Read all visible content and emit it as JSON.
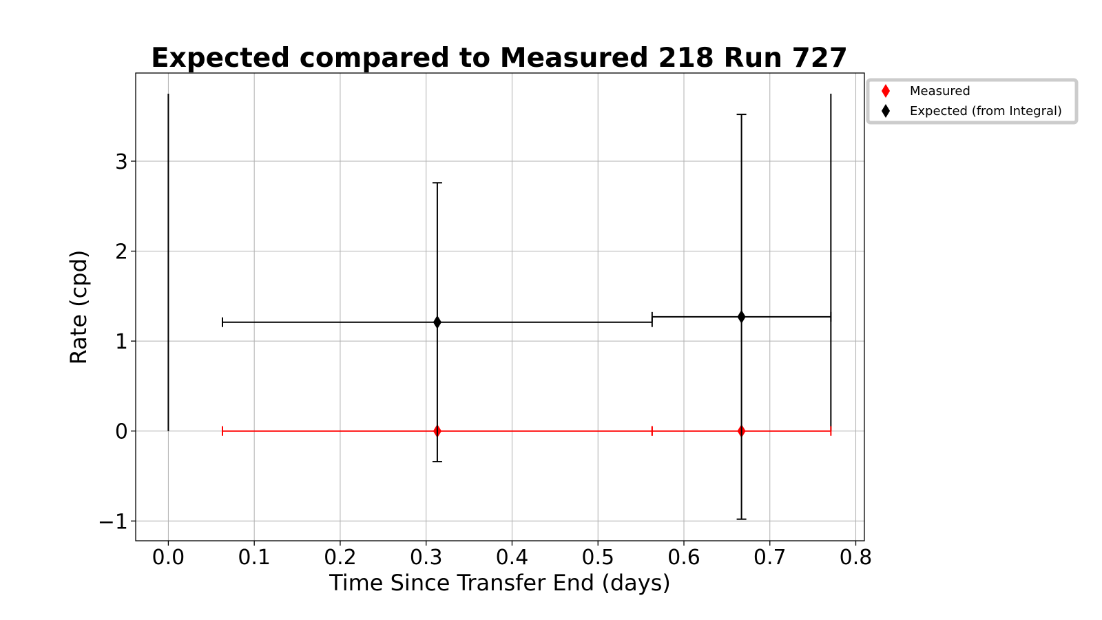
{
  "chart_data": {
    "type": "scatter",
    "title": "Expected compared to Measured 218 Run 727",
    "xlabel": "Time Since Transfer End (days)",
    "ylabel": "Rate (cpd)",
    "xlim": [
      -0.038,
      0.81
    ],
    "ylim": [
      -1.22,
      3.98
    ],
    "xticks": [
      0.0,
      0.1,
      0.2,
      0.3,
      0.4,
      0.5,
      0.6,
      0.7,
      0.8
    ],
    "xtick_labels": [
      "0.0",
      "0.1",
      "0.2",
      "0.3",
      "0.4",
      "0.5",
      "0.6",
      "0.7",
      "0.8"
    ],
    "yticks": [
      -1,
      0,
      1,
      2,
      3
    ],
    "ytick_labels": [
      "−1",
      "0",
      "1",
      "2",
      "3"
    ],
    "grid": true,
    "legend_position": "outside-top-right",
    "series": [
      {
        "name": "Measured",
        "color": "#ff0000",
        "marker": "diamond",
        "points": [
          {
            "x": 0.313,
            "y": 0.0,
            "xerr_low": 0.063,
            "xerr_high": 0.563,
            "yerr_low": 0.0,
            "yerr_high": 0.0
          },
          {
            "x": 0.667,
            "y": 0.0,
            "xerr_low": 0.563,
            "xerr_high": 0.771,
            "yerr_low": 0.0,
            "yerr_high": 0.0
          }
        ]
      },
      {
        "name": "Expected (from Integral)",
        "color": "#000000",
        "marker": "diamond",
        "points": [
          {
            "x": 0.313,
            "y": 1.21,
            "xerr_low": 0.063,
            "xerr_high": 0.563,
            "yerr_low": -0.34,
            "yerr_high": 2.76
          },
          {
            "x": 0.667,
            "y": 1.27,
            "xerr_low": 0.563,
            "xerr_high": 0.771,
            "yerr_low": -0.98,
            "yerr_high": 3.52
          }
        ]
      }
    ],
    "vertical_lines": [
      {
        "x": 0.0,
        "y_low": 0.0,
        "y_high": 3.75,
        "color": "#000000"
      },
      {
        "x": 0.771,
        "y_low": 0.0,
        "y_high": 3.75,
        "color": "#000000"
      }
    ]
  }
}
